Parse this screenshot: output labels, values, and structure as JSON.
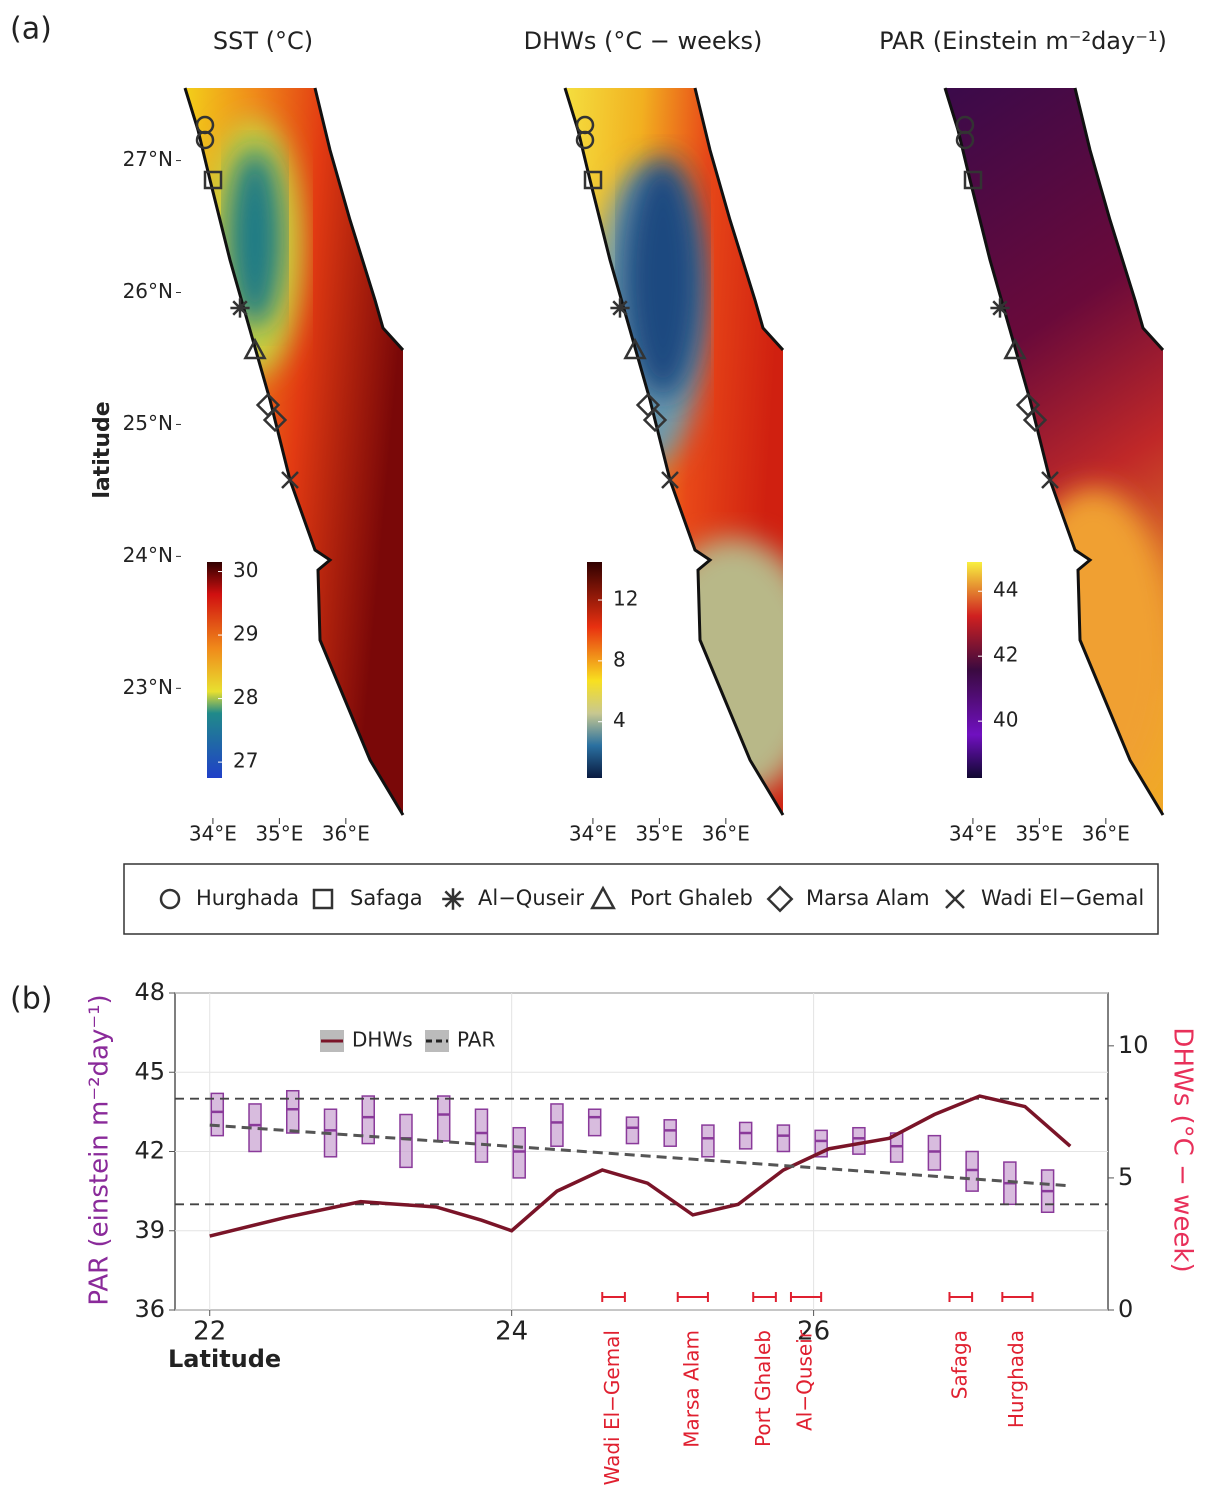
{
  "panel_a_label": "(a)",
  "maps": {
    "ylabel": "latitude",
    "ylim": [
      22.04,
      27.55
    ],
    "yticks": [
      {
        "value": 23,
        "label": "23°N"
      },
      {
        "value": 24,
        "label": "24°N"
      },
      {
        "value": 25,
        "label": "25°N"
      },
      {
        "value": 26,
        "label": "26°N"
      },
      {
        "value": 27,
        "label": "27°N"
      }
    ],
    "xlim": [
      33.55,
      36.86
    ],
    "xticks": [
      {
        "value": 34,
        "label": "34°E"
      },
      {
        "value": 35,
        "label": "35°E"
      },
      {
        "value": 36,
        "label": "36°E"
      }
    ],
    "panels": [
      {
        "title": "SST (°C)",
        "colorbar": {
          "lim": [
            26.75,
            30.15
          ],
          "ticks": [
            27,
            28,
            29,
            30
          ]
        }
      },
      {
        "title": "DHWs (°C − weeks)",
        "colorbar": {
          "lim": [
            0.3,
            14.5
          ],
          "ticks": [
            4,
            8,
            12
          ]
        }
      },
      {
        "title": "PAR (Einstein m⁻²day⁻¹)",
        "colorbar": {
          "lim": [
            38.25,
            44.9
          ],
          "ticks": [
            40,
            42,
            44
          ]
        }
      }
    ]
  },
  "legend": [
    "Hurghada",
    "Safaga",
    "Al−Quseir",
    "Port Ghaleb",
    "Marsa Alam",
    "Wadi El−Gemal"
  ],
  "panel_b_label": "(b)",
  "chart_data": {
    "type": "line",
    "xlabel": "Latitude",
    "ylabel": "PAR (einstein m⁻²day⁻¹)",
    "y2label": "DHWs (°C − week)",
    "xlim": [
      21.77,
      27.95
    ],
    "xticks": [
      22,
      24,
      26
    ],
    "ylim": [
      36,
      48
    ],
    "yticks": [
      36,
      39,
      42,
      45,
      48
    ],
    "y2lim": [
      0,
      12
    ],
    "y2ticks": [
      0,
      5,
      10
    ],
    "grid": true,
    "hlines": [
      40,
      44
    ],
    "series": [
      {
        "name": "DHWs",
        "color": "#7a1428",
        "axis": "y2",
        "x": [
          22.0,
          22.5,
          23.0,
          23.5,
          23.8,
          24.0,
          24.3,
          24.6,
          24.9,
          25.2,
          25.5,
          25.8,
          26.1,
          26.5,
          26.8,
          27.1,
          27.4,
          27.7
        ],
        "values": [
          2.8,
          3.5,
          4.1,
          3.9,
          3.4,
          3.0,
          4.5,
          5.3,
          4.8,
          3.6,
          4.0,
          5.3,
          6.1,
          6.5,
          7.4,
          8.1,
          7.7,
          6.2
        ]
      },
      {
        "name": "PAR",
        "color": "#555555",
        "axis": "y",
        "x": [
          22.0,
          27.7
        ],
        "values": [
          43.0,
          40.7
        ]
      }
    ],
    "par_boxes": {
      "color": "#8a3a9a",
      "x": [
        22.05,
        22.3,
        22.55,
        22.8,
        23.05,
        23.3,
        23.55,
        23.8,
        24.05,
        24.3,
        24.55,
        24.8,
        25.05,
        25.3,
        25.55,
        25.8,
        26.05,
        26.3,
        26.55,
        26.8,
        27.05,
        27.3,
        27.55
      ],
      "q1": [
        42.6,
        42.0,
        42.7,
        41.8,
        42.3,
        41.4,
        42.4,
        41.6,
        41.0,
        42.2,
        42.6,
        42.3,
        42.2,
        41.8,
        42.1,
        42.0,
        41.8,
        41.9,
        41.6,
        41.3,
        40.5,
        40.0,
        39.7
      ],
      "median": [
        43.5,
        43.0,
        43.6,
        42.8,
        43.3,
        42.5,
        43.4,
        42.7,
        42.0,
        43.1,
        43.3,
        42.9,
        42.8,
        42.5,
        42.7,
        42.6,
        42.4,
        42.5,
        42.2,
        42.0,
        41.3,
        40.8,
        40.5
      ],
      "q3": [
        44.2,
        43.8,
        44.3,
        43.6,
        44.1,
        43.4,
        44.1,
        43.6,
        42.9,
        43.8,
        43.6,
        43.3,
        43.2,
        43.0,
        43.1,
        43.0,
        42.8,
        42.9,
        42.7,
        42.6,
        42.0,
        41.6,
        41.3
      ]
    },
    "sites": [
      {
        "name": "Wadi El−Gemal",
        "lat": [
          24.6,
          24.75
        ]
      },
      {
        "name": "Marsa Alam",
        "lat": [
          25.1,
          25.3
        ]
      },
      {
        "name": "Port Ghaleb",
        "lat": [
          25.6,
          25.75
        ]
      },
      {
        "name": "Al−Quseir",
        "lat": [
          25.85,
          26.05
        ]
      },
      {
        "name": "Safaga",
        "lat": [
          26.9,
          27.05
        ]
      },
      {
        "name": "Hurghada",
        "lat": [
          27.25,
          27.45
        ]
      }
    ]
  }
}
